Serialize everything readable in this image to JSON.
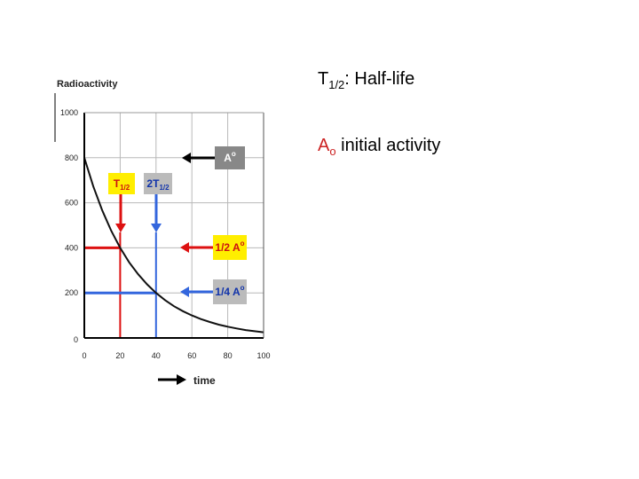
{
  "chart_data": {
    "type": "line",
    "ylabel": "Radioactivity",
    "xlabel": "time",
    "xlim": [
      0,
      100
    ],
    "ylim": [
      0,
      1000
    ],
    "x_ticks": [
      "0",
      "20",
      "40",
      "60",
      "80",
      "100"
    ],
    "y_ticks": [
      "0",
      "200",
      "400",
      "600",
      "800",
      "1000"
    ],
    "grid": true,
    "series": [
      {
        "color": "#111111",
        "x": [
          0,
          5,
          10,
          15,
          20,
          25,
          30,
          35,
          40,
          45,
          50,
          55,
          60,
          65,
          70,
          75,
          80,
          85,
          90,
          95,
          100
        ],
        "y": [
          800,
          673,
          566,
          476,
          400,
          336,
          283,
          238,
          200,
          168,
          141,
          119,
          100,
          84,
          71,
          59,
          50,
          42,
          35,
          30,
          25
        ]
      }
    ],
    "guides": [
      {
        "kind": "horizontal",
        "y": 400,
        "x_end": 20,
        "color": "#dd1111"
      },
      {
        "kind": "vertical",
        "x": 20,
        "color": "#dd1111"
      },
      {
        "kind": "horizontal",
        "y": 200,
        "x_end": 40,
        "color": "#3366dd"
      },
      {
        "kind": "vertical",
        "x": 40,
        "color": "#3366dd"
      }
    ],
    "annotations": [
      {
        "text": "A",
        "sup": "o",
        "bg": "#888888",
        "fg": "#ffffff",
        "arrow_color": "#000000"
      },
      {
        "text": "T",
        "sub": "1/2",
        "bg": "#ffee00",
        "fg": "#cc1111",
        "arrow_color": "#dd1111"
      },
      {
        "text": "2T",
        "sub": "1/2",
        "bg": "#bbbbbb",
        "fg": "#1133aa",
        "arrow_color": "#3366dd"
      },
      {
        "text": "1/2 A",
        "sup": "o",
        "bg": "#ffee00",
        "fg": "#cc1111",
        "arrow_color": "#dd1111"
      },
      {
        "text": "1/4 A",
        "sup": "o",
        "bg": "#bbbbbb",
        "fg": "#1133aa",
        "arrow_color": "#3366dd"
      }
    ]
  },
  "definitions": {
    "half_life_symbol": "T",
    "half_life_subscript": "1/2",
    "half_life_text": ": Half-life",
    "initial_symbol": "A",
    "initial_subscript": "o",
    "initial_text": " initial activity"
  }
}
